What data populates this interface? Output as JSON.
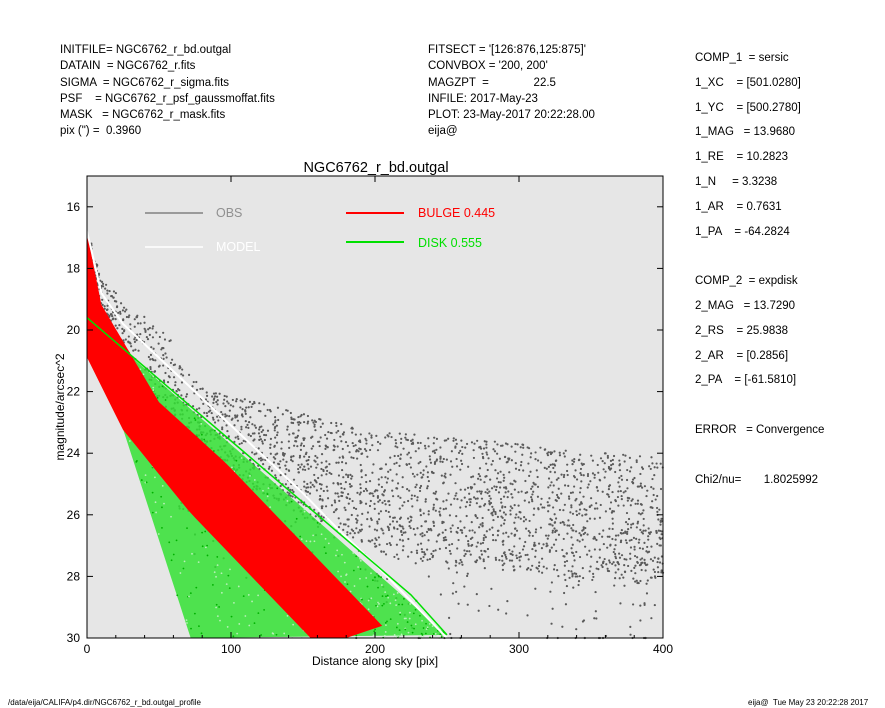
{
  "header_left": [
    "INITFILE= NGC6762_r_bd.outgal",
    "DATAIN  = NGC6762_r.fits",
    "SIGMA  = NGC6762_r_sigma.fits",
    "PSF    = NGC6762_r_psf_gaussmoffat.fits",
    "MASK   = NGC6762_r_mask.fits",
    "pix (\") =  0.3960"
  ],
  "header_mid": [
    "FITSECT = '[126:876,125:875]'",
    "CONVBOX = '200, 200'",
    "MAGZPT  =              22.5",
    "INFILE: 2017-May-23",
    "PLOT: 23-May-2017 20:22:28.00",
    "eija@"
  ],
  "header_right": [
    "COMP_1  = sersic",
    "1_XC    = [501.0280]",
    "1_YC    = [500.2780]",
    "1_MAG   = 13.9680",
    "1_RE    = 10.2823",
    "1_N     = 3.3238",
    "1_AR    = 0.7631",
    "1_PA    = -64.2824",
    "",
    "COMP_2  = expdisk",
    "2_MAG   = 13.7290",
    "2_RS    = 25.9838",
    "2_AR    = [0.2856]",
    "2_PA    = [-61.5810]",
    "",
    "ERROR   = Convergence",
    "",
    "Chi2/nu=       1.8025992"
  ],
  "footer_left": "/data/eija/CALIFA/p4.dir/NGC6762_r_bd.outgal_profile",
  "footer_right": "eija@  Tue May 23 20:22:28 2017",
  "chart_data": {
    "type": "scatter",
    "title": "NGC6762_r_bd.outgal",
    "xlabel": "Distance along sky [pix]",
    "ylabel": "magnitude/arcsec^2",
    "xlim": [
      0,
      400
    ],
    "ylim": [
      30,
      15
    ],
    "y_inverted": true,
    "xticks": [
      0,
      100,
      200,
      300,
      400
    ],
    "yticks": [
      16,
      18,
      20,
      22,
      24,
      26,
      28,
      30
    ],
    "background": "#e6e6e6",
    "grid": false,
    "legend": [
      {
        "label": "OBS",
        "color": "#808080"
      },
      {
        "label": "MODEL",
        "color": "#ffffff"
      },
      {
        "label": "BULGE  0.445",
        "color": "#ff0000"
      },
      {
        "label": "DISK  0.555",
        "color": "#00e000"
      }
    ],
    "series": [
      {
        "name": "OBS",
        "color": "#606060",
        "x": [
          0,
          10,
          20,
          30,
          40,
          50,
          60,
          70,
          80,
          100,
          125,
          150,
          175,
          200,
          250,
          300,
          350,
          400
        ],
        "y": [
          16.8,
          18.7,
          19.6,
          20.3,
          21.0,
          21.5,
          21.9,
          22.3,
          22.5,
          22.8,
          23.2,
          23.6,
          24.0,
          24.3,
          24.8,
          25.0,
          25.1,
          25.2
        ]
      },
      {
        "name": "MODEL",
        "color": "#ffffff",
        "x": [
          0,
          10,
          25,
          50,
          75,
          100,
          125,
          150,
          175,
          200,
          225,
          250
        ],
        "y": [
          16.8,
          18.8,
          19.8,
          20.9,
          22.0,
          23.1,
          24.2,
          25.3,
          26.5,
          27.6,
          28.8,
          30.0
        ]
      },
      {
        "name": "BULGE  0.445",
        "color": "#ff0000",
        "x": [
          0,
          10,
          25,
          50,
          75,
          100,
          125,
          150,
          175,
          200
        ],
        "y": [
          16.9,
          19.3,
          20.9,
          22.7,
          24.0,
          25.3,
          26.5,
          27.7,
          28.9,
          30.0
        ]
      },
      {
        "name": "DISK  0.555",
        "color": "#00e000",
        "x": [
          0,
          25,
          50,
          75,
          100,
          125,
          150,
          175,
          200,
          225,
          250
        ],
        "y": [
          19.6,
          20.6,
          21.6,
          22.6,
          23.6,
          24.6,
          25.6,
          26.6,
          27.6,
          28.6,
          29.9
        ]
      }
    ]
  }
}
